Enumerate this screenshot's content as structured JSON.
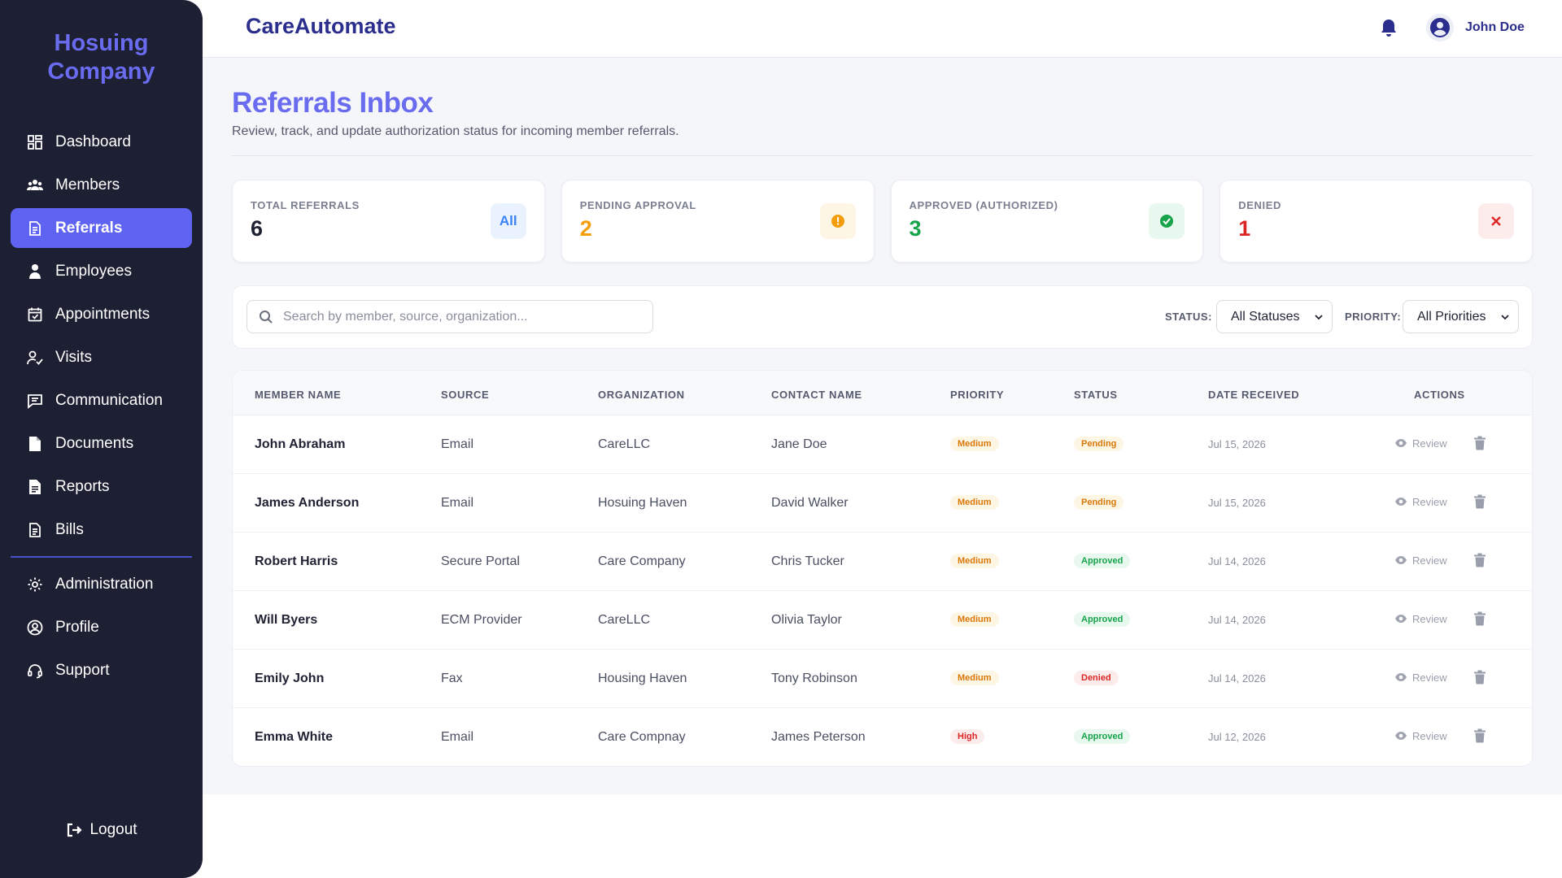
{
  "sidebar": {
    "brand": "Hosuing Company",
    "items": [
      {
        "label": "Dashboard",
        "icon": "dashboard-icon"
      },
      {
        "label": "Members",
        "icon": "users-icon"
      },
      {
        "label": "Referrals",
        "icon": "document-icon"
      },
      {
        "label": "Employees",
        "icon": "user-icon"
      },
      {
        "label": "Appointments",
        "icon": "calendar-check-icon"
      },
      {
        "label": "Visits",
        "icon": "user-check-icon"
      },
      {
        "label": "Communication",
        "icon": "message-icon"
      },
      {
        "label": "Documents",
        "icon": "file-icon"
      },
      {
        "label": "Reports",
        "icon": "report-icon"
      },
      {
        "label": "Bills",
        "icon": "bill-icon"
      }
    ],
    "secondary": [
      {
        "label": "Administration",
        "icon": "gear-icon"
      },
      {
        "label": "Profile",
        "icon": "user-circle-icon"
      },
      {
        "label": "Support",
        "icon": "headset-icon"
      }
    ],
    "active": "Referrals",
    "logout": "Logout"
  },
  "header": {
    "app_title": "CareAutomate",
    "user_name": "John Doe"
  },
  "page": {
    "title": "Referrals Inbox",
    "subtitle": "Review, track, and update authorization status for incoming member referrals."
  },
  "stats": [
    {
      "label": "Total Referrals",
      "value": "6",
      "badge": "All",
      "color": "#1f2233",
      "badge_bg": "#eaf2fd",
      "badge_color": "#3b82f6"
    },
    {
      "label": "Pending Approval",
      "value": "2",
      "badge": "!",
      "color": "#f59e0b",
      "badge_bg": "#fef6e4",
      "badge_color": "#f59e0b"
    },
    {
      "label": "Approved (Authorized)",
      "value": "3",
      "badge": "✓",
      "color": "#16a34a",
      "badge_bg": "#e8f8ee",
      "badge_color": "#16a34a"
    },
    {
      "label": "Denied",
      "value": "1",
      "badge": "✕",
      "color": "#dc2626",
      "badge_bg": "#fdecec",
      "badge_color": "#dc2626"
    }
  ],
  "filters": {
    "search_placeholder": "Search by member, source, organization...",
    "status_label": "STATUS:",
    "status_value": "All Statuses",
    "priority_label": "PRIORITY:",
    "priority_value": "All Priorities"
  },
  "table": {
    "columns": [
      "MEMBER NAME",
      "SOURCE",
      "ORGANIZATION",
      "CONTACT NAME",
      "PRIORITY",
      "STATUS",
      "DATE RECEIVED",
      "ACTIONS"
    ],
    "review_label": "Review",
    "rows": [
      {
        "member": "John Abraham",
        "source": "Email",
        "org": "CareLLC",
        "contact": "Jane Doe",
        "priority": "Medium",
        "status": "Pending",
        "date": "Jul 15, 2026"
      },
      {
        "member": "James Anderson",
        "source": "Email",
        "org": "Hosuing Haven",
        "contact": "David Walker",
        "priority": "Medium",
        "status": "Pending",
        "date": "Jul 15, 2026"
      },
      {
        "member": "Robert Harris",
        "source": "Secure Portal",
        "org": "Care Company",
        "contact": "Chris Tucker",
        "priority": "Medium",
        "status": "Approved",
        "date": "Jul 14, 2026"
      },
      {
        "member": "Will Byers",
        "source": "ECM Provider",
        "org": "CareLLC",
        "contact": "Olivia Taylor",
        "priority": "Medium",
        "status": "Approved",
        "date": "Jul 14, 2026"
      },
      {
        "member": "Emily John",
        "source": "Fax",
        "org": "Housing Haven",
        "contact": "Tony Robinson",
        "priority": "Medium",
        "status": "Denied",
        "date": "Jul 14, 2026"
      },
      {
        "member": "Emma White",
        "source": "Email",
        "org": "Care Compnay",
        "contact": "James Peterson",
        "priority": "High",
        "status": "Approved",
        "date": "Jul 12, 2026"
      }
    ]
  },
  "colors": {
    "accent": "#5f63f1",
    "sidebar_bg": "#1d1f33",
    "brand": "#6a6cf0",
    "priority_medium_bg": "#fef6e4",
    "priority_medium_fg": "#d97706",
    "priority_high_bg": "#fdecec",
    "priority_high_fg": "#dc2626",
    "status_pending_bg": "#fef6e4",
    "status_pending_fg": "#d97706",
    "status_approved_bg": "#e8f8ee",
    "status_approved_fg": "#16a34a",
    "status_denied_bg": "#fdecec",
    "status_denied_fg": "#dc2626"
  }
}
